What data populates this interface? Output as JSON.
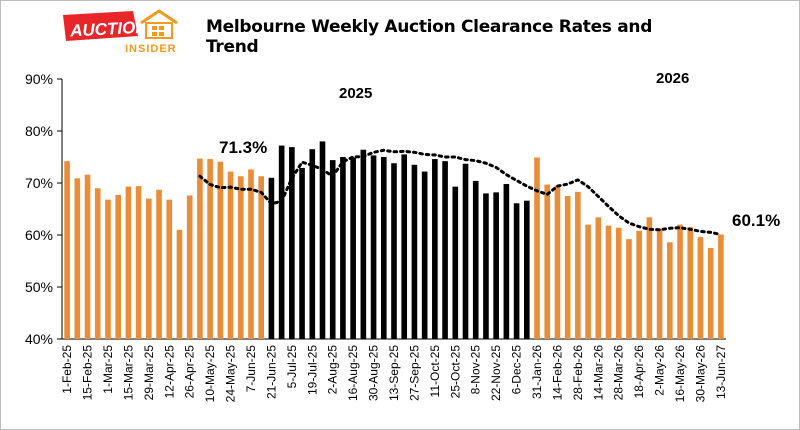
{
  "logo": {
    "main": "AUCTION",
    "sub": "INSIDER"
  },
  "colors": {
    "orange": "#E88D3A",
    "black": "#000000",
    "trend": "#000000",
    "logo_red": "#E8262A",
    "logo_orange": "#F39A1E"
  },
  "chart_data": {
    "type": "bar",
    "title": "Melbourne Weekly Auction Clearance Rates and Trend",
    "ylim": [
      40,
      90
    ],
    "yticks": [
      "40%",
      "50%",
      "60%",
      "70%",
      "80%",
      "90%"
    ],
    "grid": false,
    "year_labels": [
      "2025",
      "2026"
    ],
    "annotations": [
      "71.3%",
      "60.1%"
    ],
    "x_tick_labels": [
      "1-Feb-25",
      "15-Feb-25",
      "1-Mar-25",
      "15-Mar-25",
      "29-Mar-25",
      "12-Apr-25",
      "26-Apr-25",
      "10-May-25",
      "24-May-25",
      "7-Jun-25",
      "21-Jun-25",
      "5-Jul-25",
      "19-Jul-25",
      "2-Aug-25",
      "16-Aug-25",
      "30-Aug-25",
      "13-Sep-25",
      "27-Sep-25",
      "11-Oct-25",
      "25-Oct-25",
      "8-Nov-25",
      "22-Nov-25",
      "6-Dec-25",
      "31-Jan-26",
      "14-Feb-26",
      "28-Feb-26",
      "14-Mar-26",
      "28-Mar-26",
      "18-Apr-26",
      "2-May-26",
      "16-May-26",
      "30-May-26",
      "13-Jun-27"
    ],
    "values": [
      74.2,
      70.9,
      71.6,
      69.0,
      66.8,
      67.7,
      69.3,
      69.4,
      67.0,
      68.7,
      66.8,
      61.0,
      67.6,
      74.7,
      74.6,
      74.1,
      72.2,
      71.3,
      72.6,
      71.3,
      71.0,
      77.2,
      76.9,
      72.9,
      76.5,
      78.0,
      74.4,
      75.0,
      74.9,
      76.4,
      75.3,
      75.0,
      73.8,
      75.5,
      73.5,
      72.2,
      74.6,
      74.2,
      69.3,
      73.7,
      70.4,
      68.0,
      68.2,
      69.8,
      66.1,
      66.6,
      74.9,
      69.7,
      69.5,
      67.5,
      68.3,
      62.0,
      63.4,
      61.8,
      61.4,
      59.2,
      60.8,
      63.4,
      61.2,
      58.6,
      62.0,
      61.5,
      59.6,
      57.5,
      60.1
    ],
    "bar_colors": [
      "orange",
      "orange",
      "orange",
      "orange",
      "orange",
      "orange",
      "orange",
      "orange",
      "orange",
      "orange",
      "orange",
      "orange",
      "orange",
      "orange",
      "orange",
      "orange",
      "orange",
      "orange",
      "orange",
      "orange",
      "black",
      "black",
      "black",
      "black",
      "black",
      "black",
      "black",
      "black",
      "black",
      "black",
      "black",
      "black",
      "black",
      "black",
      "black",
      "black",
      "black",
      "black",
      "black",
      "black",
      "black",
      "black",
      "black",
      "black",
      "black",
      "black",
      "orange",
      "orange",
      "orange",
      "orange",
      "orange",
      "orange",
      "orange",
      "orange",
      "orange",
      "orange",
      "orange",
      "orange",
      "orange",
      "orange",
      "orange",
      "orange",
      "orange",
      "orange",
      "orange"
    ],
    "trend": [
      71.3,
      69.7,
      69.1,
      69.2,
      68.8,
      68.8,
      68.2,
      66.0,
      66.5,
      70.9,
      74.0,
      73.4,
      72.6,
      71.3,
      74.1,
      75.0,
      75.1,
      75.9,
      76.3,
      76.0,
      76.1,
      75.9,
      75.5,
      75.4,
      75.0,
      75.0,
      74.5,
      74.3,
      73.8,
      73.0,
      71.6,
      70.5,
      69.4,
      68.5,
      67.8,
      69.4,
      69.8,
      70.6,
      69.3,
      67.4,
      65.5,
      63.7,
      62.3,
      61.6,
      61.1,
      61.0,
      61.3,
      61.4,
      61.1,
      60.7,
      60.5,
      60.1
    ]
  }
}
